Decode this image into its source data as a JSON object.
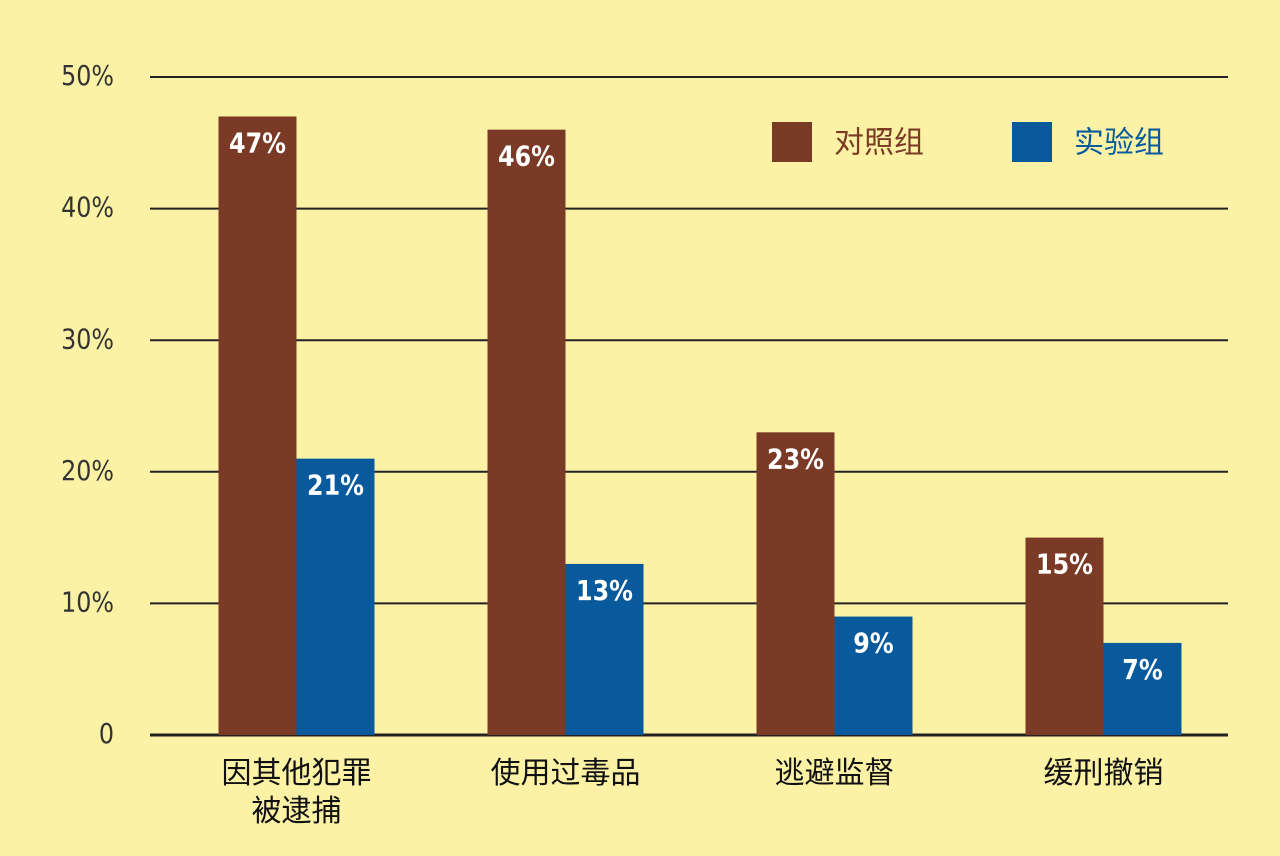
{
  "chart_data": {
    "type": "bar",
    "categories": [
      "因其他犯罪\n被逮捕",
      "使用过毒品",
      "逃避监督",
      "缓刑撤销"
    ],
    "series": [
      {
        "name": "对照组",
        "color": "#7a3a26",
        "values": [
          47,
          46,
          23,
          15
        ],
        "value_labels": [
          "47%",
          "46%",
          "23%",
          "15%"
        ]
      },
      {
        "name": "实验组",
        "color": "#085a9c",
        "values": [
          21,
          13,
          9,
          7
        ],
        "value_labels": [
          "21%",
          "13%",
          "9%",
          "7%"
        ]
      }
    ],
    "ylim": [
      0,
      50
    ],
    "yticks": [
      0,
      {
        "value": 10,
        "label": "10%"
      },
      {
        "value": 20,
        "label": "20%"
      },
      {
        "value": 30,
        "label": "30%"
      },
      {
        "value": 40,
        "label": "40%"
      },
      {
        "value": 50,
        "label": "50%"
      }
    ],
    "grid": true,
    "legend": "top-right"
  }
}
